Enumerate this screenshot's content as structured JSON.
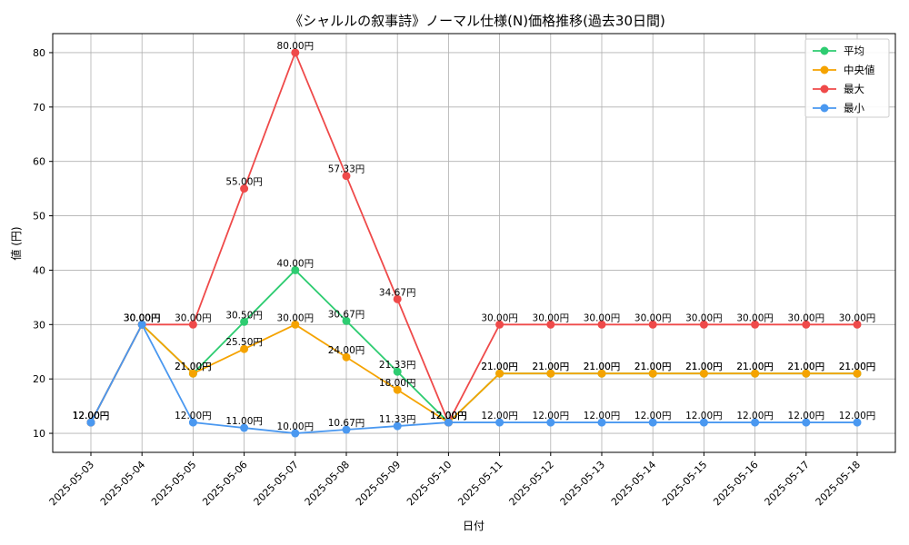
{
  "chart_data": {
    "type": "line",
    "title": "《シャルルの叙事詩》ノーマル仕様(N)価格推移(過去30日間)",
    "xlabel": "日付",
    "ylabel": "値 (円)",
    "ylim": [
      6.5,
      83.5
    ],
    "yticks": [
      10,
      20,
      30,
      40,
      50,
      60,
      70,
      80
    ],
    "grid": true,
    "legend_position": "top-right",
    "label_suffix": "円",
    "categories": [
      "2025-05-03",
      "2025-05-04",
      "2025-05-05",
      "2025-05-06",
      "2025-05-07",
      "2025-05-08",
      "2025-05-09",
      "2025-05-10",
      "2025-05-11",
      "2025-05-12",
      "2025-05-13",
      "2025-05-14",
      "2025-05-15",
      "2025-05-16",
      "2025-05-17",
      "2025-05-18"
    ],
    "series": [
      {
        "name": "平均",
        "color": "#2ecc71",
        "values": [
          12.0,
          30.0,
          21.0,
          30.5,
          40.0,
          30.67,
          21.33,
          12.0,
          21.0,
          21.0,
          21.0,
          21.0,
          21.0,
          21.0,
          21.0,
          21.0
        ]
      },
      {
        "name": "中央値",
        "color": "#f5a300",
        "values": [
          12.0,
          30.0,
          21.0,
          25.5,
          30.0,
          24.0,
          18.0,
          12.0,
          21.0,
          21.0,
          21.0,
          21.0,
          21.0,
          21.0,
          21.0,
          21.0
        ]
      },
      {
        "name": "最大",
        "color": "#ef4a4a",
        "values": [
          12.0,
          30.0,
          30.0,
          55.0,
          80.0,
          57.33,
          34.67,
          12.0,
          30.0,
          30.0,
          30.0,
          30.0,
          30.0,
          30.0,
          30.0,
          30.0
        ]
      },
      {
        "name": "最小",
        "color": "#4a98f0",
        "values": [
          12.0,
          30.0,
          12.0,
          11.0,
          10.0,
          10.67,
          11.33,
          12.0,
          12.0,
          12.0,
          12.0,
          12.0,
          12.0,
          12.0,
          12.0,
          12.0
        ]
      }
    ]
  }
}
